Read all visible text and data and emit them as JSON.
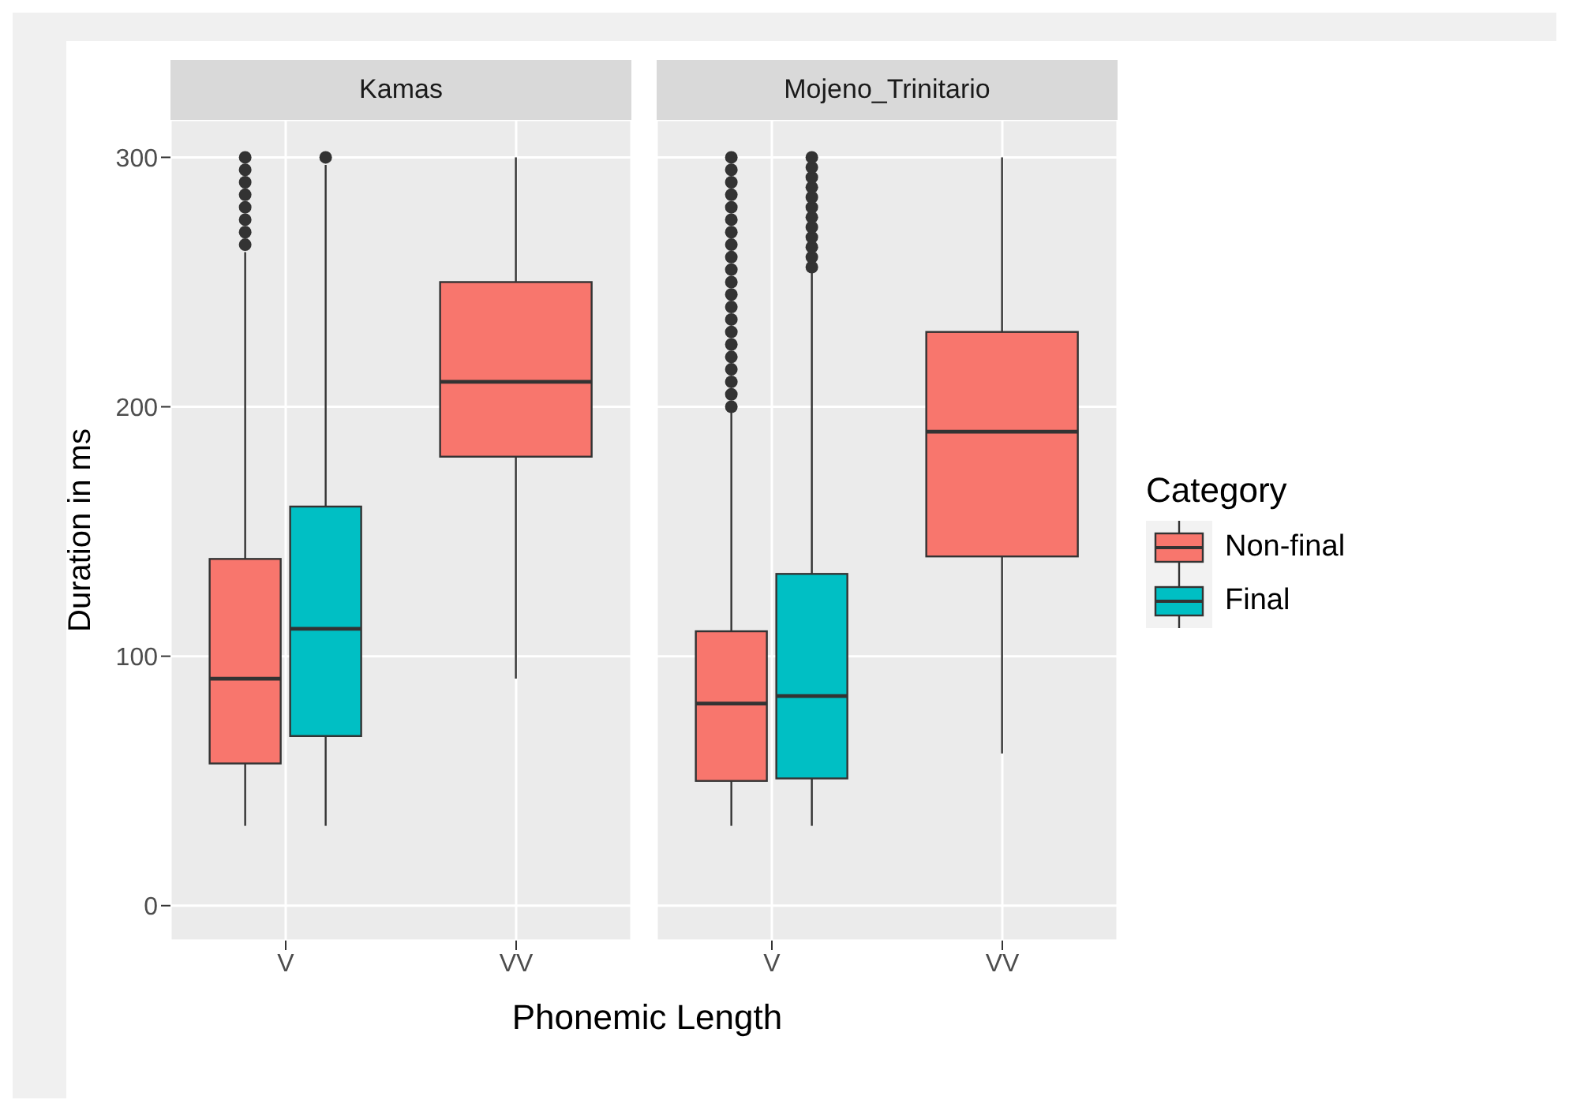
{
  "chart_data": [
    {
      "type": "box",
      "title": "Kamas",
      "xlabel": "Phonemic Length",
      "ylabel": "Duration in ms",
      "categories": [
        "V",
        "VV"
      ],
      "ylim": [
        -14,
        315
      ],
      "yticks": [
        0,
        100,
        200,
        300
      ],
      "grid": true,
      "legend": "right",
      "legend_title": "Category",
      "series": [
        {
          "name": "Non-final",
          "color": "#f8766d",
          "boxes": [
            {
              "low": 32,
              "q1": 57,
              "median": 91,
              "q3": 139,
              "high": 262,
              "outliers": [
                265,
                270,
                275,
                280,
                285,
                290,
                295,
                300
              ]
            },
            {
              "low": 91,
              "q1": 180,
              "median": 210,
              "q3": 250,
              "high": 300
            }
          ]
        },
        {
          "name": "Final",
          "color": "#00bfc4",
          "boxes": [
            {
              "low": 32,
              "q1": 68,
              "median": 111,
              "q3": 160,
              "high": 297,
              "outliers": [
                300
              ]
            },
            null
          ]
        }
      ]
    },
    {
      "type": "box",
      "title": "Mojeno_Trinitario",
      "categories": [
        "V",
        "VV"
      ],
      "ylim": [
        -14,
        315
      ],
      "yticks": [
        0,
        100,
        200,
        300
      ],
      "grid": true,
      "tick_labels": "x",
      "series": [
        {
          "color": "#f8766d",
          "boxes": [
            {
              "low": 32,
              "q1": 50,
              "median": 81,
              "q3": 110,
              "high": 198,
              "outliers": [
                200,
                205,
                210,
                215,
                220,
                225,
                230,
                235,
                240,
                245,
                250,
                255,
                260,
                265,
                270,
                275,
                280,
                285,
                290,
                295,
                300
              ]
            },
            {
              "low": 61,
              "q1": 140,
              "median": 190,
              "q3": 230,
              "high": 300
            }
          ]
        },
        {
          "color": "#00bfc4",
          "boxes": [
            {
              "low": 32,
              "q1": 51,
              "median": 84,
              "q3": 133,
              "high": 254,
              "outliers": [
                256,
                260,
                264,
                268,
                272,
                276,
                280,
                284,
                288,
                292,
                296,
                300
              ]
            },
            null
          ]
        }
      ]
    }
  ]
}
